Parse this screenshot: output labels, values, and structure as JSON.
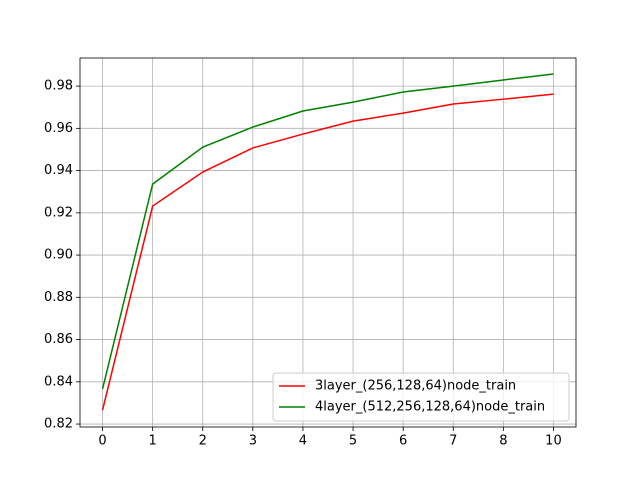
{
  "chart_data": {
    "type": "line",
    "categories": [
      "0",
      "1",
      "2",
      "3",
      "4",
      "5",
      "6",
      "7",
      "8",
      "10"
    ],
    "series": [
      {
        "name": "3layer_(256,128,64)node_train",
        "color": "#ff0000",
        "values": [
          0.8266,
          0.9232,
          0.9393,
          0.9507,
          0.9573,
          0.9634,
          0.9672,
          0.9715,
          0.9738,
          0.9762
        ]
      },
      {
        "name": "4layer_(512,256,128,64)node_train",
        "color": "#008000",
        "values": [
          0.8366,
          0.9336,
          0.9511,
          0.9606,
          0.9682,
          0.9724,
          0.9772,
          0.98,
          0.9829,
          0.9857
        ]
      }
    ],
    "ylim": [
      0.8186,
      0.9933
    ],
    "yticks": [
      0.82,
      0.84,
      0.86,
      0.88,
      {
        "value": 0.9,
        "label": "0.90"
      },
      0.92,
      0.94,
      0.96,
      0.98
    ],
    "grid": true,
    "legend": "lower right"
  }
}
